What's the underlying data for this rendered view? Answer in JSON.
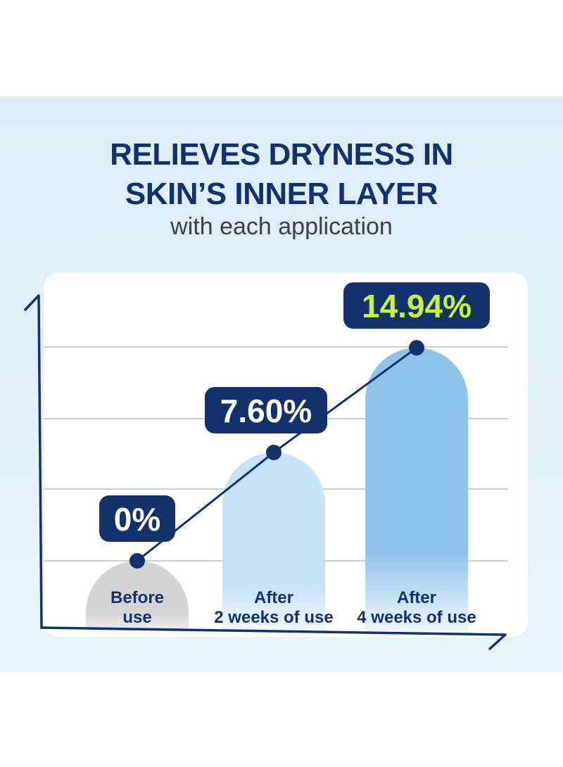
{
  "header": {
    "title_line1": "RELIEVES DRYNESS IN",
    "title_line2": "SKIN’S INNER LAYER",
    "subtitle": "with each application"
  },
  "colors": {
    "navy": "#13316b",
    "value_highlight": "#c9f23d",
    "bar_before": "#d4d4d4",
    "bar_2weeks": "#c6e2f7",
    "bar_4weeks": "#8fc3ea",
    "gridline": "#c8ccd4"
  },
  "chart_data": {
    "type": "bar",
    "categories": [
      [
        "Before",
        "use"
      ],
      [
        "After",
        "2 weeks of use"
      ],
      [
        "After",
        "4 weeks of use"
      ]
    ],
    "values": [
      0,
      7.6,
      14.94
    ],
    "value_labels": [
      "0%",
      "7.60%",
      "14.94%"
    ],
    "ylim": [
      0,
      15
    ],
    "grid": true,
    "connecting_line": true
  }
}
